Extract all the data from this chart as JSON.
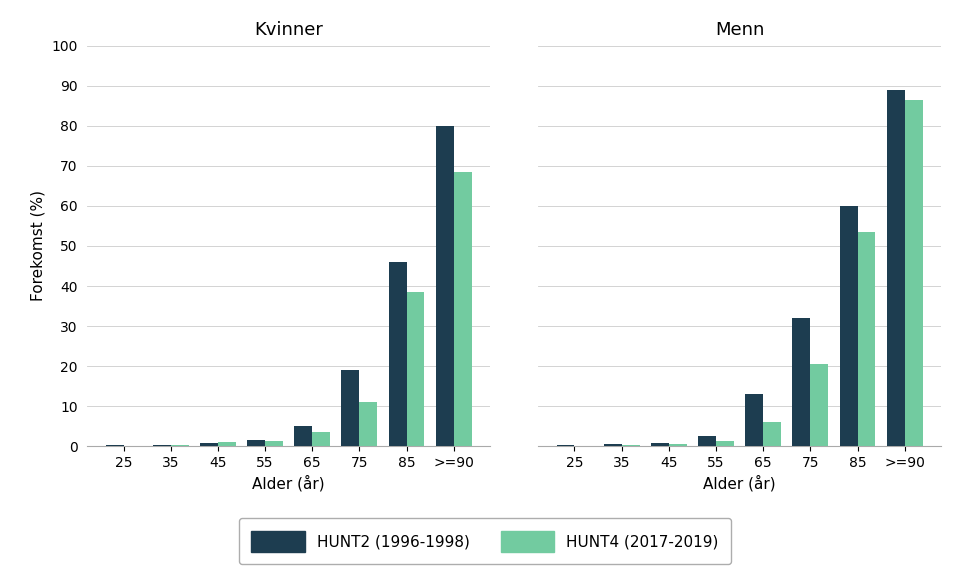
{
  "categories": [
    "25",
    "35",
    "45",
    "55",
    "65",
    "75",
    "85",
    ">=90"
  ],
  "kvinner_hunt2": [
    0.2,
    0.4,
    0.7,
    1.5,
    5.0,
    19.0,
    46.0,
    80.0
  ],
  "kvinner_hunt4": [
    0.1,
    0.3,
    1.0,
    1.2,
    3.5,
    11.0,
    38.5,
    68.5
  ],
  "menn_hunt2": [
    0.4,
    0.5,
    0.7,
    2.5,
    13.0,
    32.0,
    60.0,
    89.0
  ],
  "menn_hunt4": [
    0.1,
    0.2,
    0.6,
    1.2,
    6.0,
    20.5,
    53.5,
    86.5
  ],
  "color_hunt2": "#1d3d50",
  "color_hunt4": "#72cba0",
  "title_kvinner": "Kvinner",
  "title_menn": "Menn",
  "ylabel": "Forekomst (%)",
  "xlabel": "Alder (år)",
  "legend_hunt2": "HUNT2 (1996-1998)",
  "legend_hunt4": "HUNT4 (2017-2019)",
  "ylim": [
    0,
    100
  ],
  "yticks": [
    0,
    10,
    20,
    30,
    40,
    50,
    60,
    70,
    80,
    90,
    100
  ],
  "background_color": "#ffffff",
  "grid_color": "#cccccc",
  "title_fontsize": 13,
  "label_fontsize": 11,
  "tick_fontsize": 10,
  "legend_fontsize": 11
}
